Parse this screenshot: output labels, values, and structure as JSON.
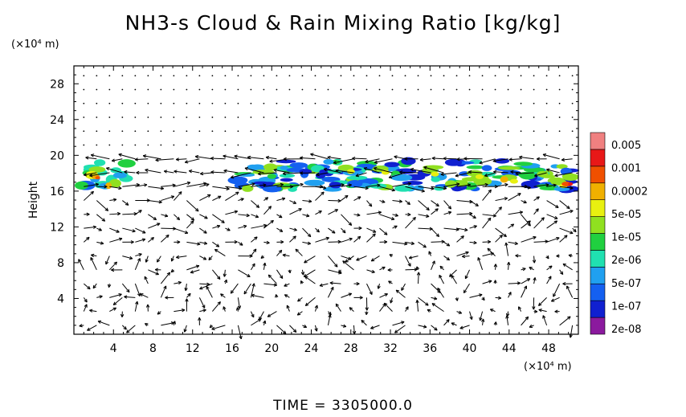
{
  "title": "NH3-s Cloud & Rain Mixing Ratio [kg/kg]",
  "footer": "TIME = 3305000.0",
  "colors": {
    "frame": "#000000",
    "arrows": "#000000",
    "colorbar": [
      "#8b1a9e",
      "#1020d0",
      "#1460f0",
      "#20a0f0",
      "#20e0b0",
      "#20d040",
      "#90e020",
      "#e8f010",
      "#f0b000",
      "#f05000",
      "#e81818",
      "#f08080"
    ]
  },
  "chart_data": {
    "type": "heatmap",
    "title": "NH3-s Cloud & Rain Mixing Ratio [kg/kg]",
    "ylabel": "Height",
    "y_unit": "(×10⁴ m)",
    "x_unit": "(×10⁴ m)",
    "xlim": [
      0,
      51
    ],
    "ylim": [
      0,
      30
    ],
    "x_ticks": [
      "4",
      "8",
      "12",
      "16",
      "20",
      "24",
      "28",
      "32",
      "36",
      "40",
      "44",
      "48"
    ],
    "y_ticks": [
      "4",
      "8",
      "12",
      "16",
      "20",
      "24",
      "28"
    ],
    "colorbar_labels": [
      "0.005",
      "0.001",
      "0.0002",
      "5e-05",
      "1e-05",
      "2e-06",
      "5e-07",
      "1e-07",
      "2e-08"
    ],
    "cloud_layer_height": [
      16,
      20
    ],
    "cloud_regions": [
      {
        "x": [
          0,
          6
        ],
        "y": [
          16,
          19.5
        ],
        "peak": "0.0002"
      },
      {
        "x": [
          16,
          51
        ],
        "y": [
          16,
          19.5
        ],
        "peak": "0.001"
      }
    ]
  }
}
